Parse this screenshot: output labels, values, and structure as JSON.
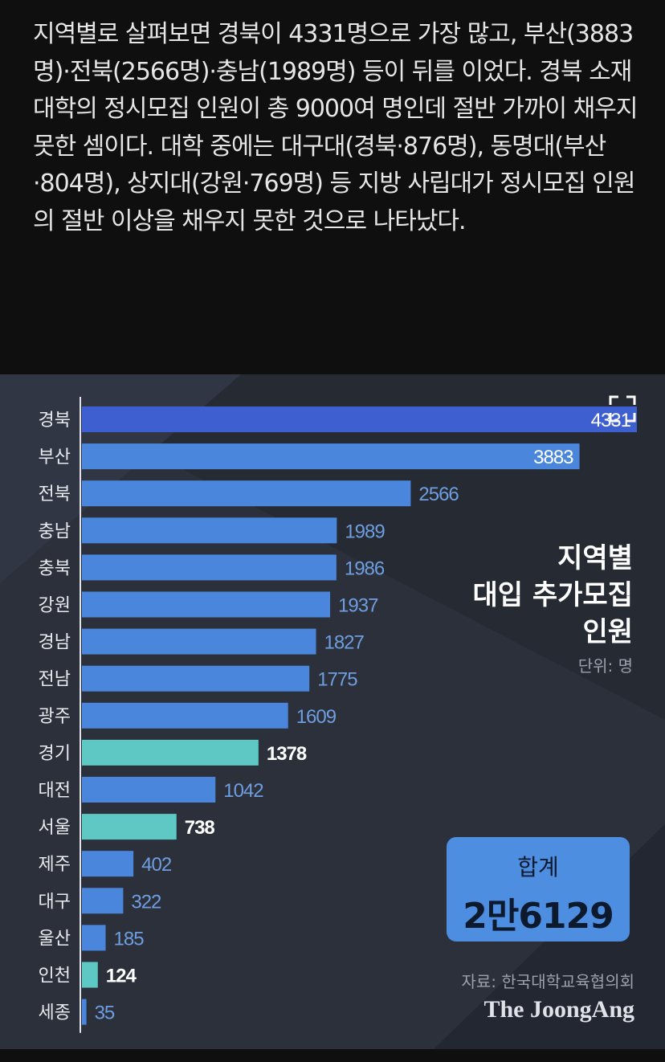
{
  "article": {
    "text": "지역별로 살펴보면 경북이 4331명으로 가장 많고, 부산(3883명)·전북(2566명)·충남(1989명) 등이 뒤를 이었다. 경북 소재 대학의 정시모집 인원이 총 9000여 명인데 절반 가까이 채우지 못한 셈이다. 대학 중에는 대구대(경북·876명), 동명대(부산·804명), 상지대(강원·769명) 등 지방 사립대가 정시모집 인원의 절반 이상을 채우지 못한 것으로 나타났다."
  },
  "infographic": {
    "title_lines": [
      "지역별",
      "대입 추가모집",
      "인원"
    ],
    "unit": "단위: 명",
    "total_label": "합계",
    "total_value": "2만6129",
    "source": "자료: 한국대학교육협의회",
    "publisher": "The JoongAng"
  },
  "colors": {
    "bar_default": "#4a86dc",
    "bar_top": "#3d5fd0",
    "bar_highlight": "#5ec8c4",
    "value_inside": "#ffffff",
    "value_outside": "#6f9ee0",
    "value_highlight": "#ffffff"
  },
  "chart_data": {
    "type": "bar",
    "orientation": "horizontal",
    "categories": [
      "경북",
      "부산",
      "전북",
      "충남",
      "충북",
      "강원",
      "경남",
      "전남",
      "광주",
      "경기",
      "대전",
      "서울",
      "제주",
      "대구",
      "울산",
      "인천",
      "세종"
    ],
    "values": [
      4331,
      3883,
      2566,
      1989,
      1986,
      1937,
      1827,
      1775,
      1609,
      1378,
      1042,
      738,
      402,
      322,
      185,
      124,
      35
    ],
    "highlighted": [
      "경기",
      "서울",
      "인천"
    ],
    "title": "지역별 대입 추가모집 인원",
    "unit": "명",
    "xlim": [
      0,
      4400
    ]
  },
  "icons": {
    "expand": "expand-icon"
  }
}
